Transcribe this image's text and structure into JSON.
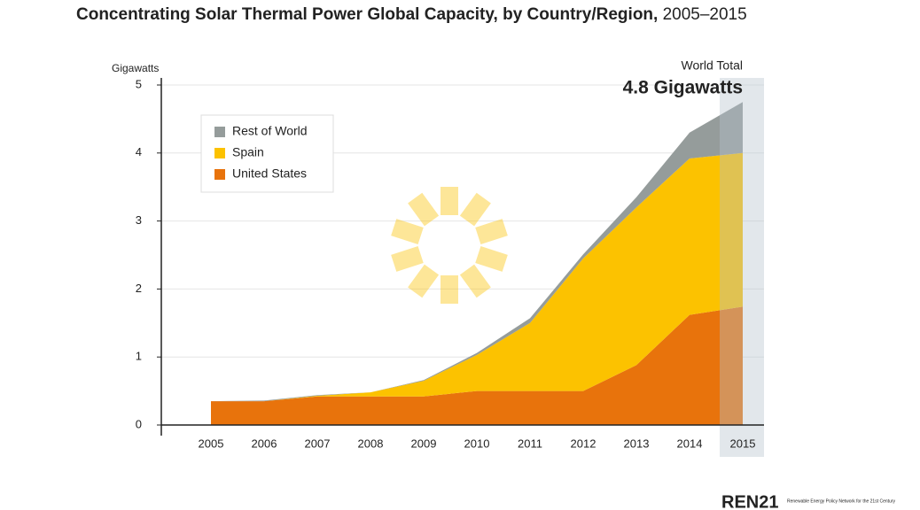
{
  "chart_data": {
    "type": "stacked_area",
    "title": "Concentrating Solar Thermal Power Global Capacity, by Country/Region,",
    "title_period": "2005–2015",
    "y_label": "Gigawatts",
    "annotation_label": "World Total",
    "annotation_value": "4.8 Gigawatts",
    "logo": "REN21",
    "logo_caption": "Renewable Energy Policy Network for the 21st Century",
    "categories": [
      "2005",
      "2006",
      "2007",
      "2008",
      "2009",
      "2010",
      "2011",
      "2012",
      "2013",
      "2014",
      "2015"
    ],
    "series": [
      {
        "name": "United States",
        "color": "#e8730c",
        "values": [
          0.35,
          0.35,
          0.42,
          0.42,
          0.42,
          0.5,
          0.5,
          0.5,
          0.88,
          1.62,
          1.74
        ]
      },
      {
        "name": "Spain",
        "color": "#fcc200",
        "values": [
          0,
          0,
          0.01,
          0.06,
          0.23,
          0.53,
          1.0,
          1.95,
          2.32,
          2.3,
          2.26
        ]
      },
      {
        "name": "Rest of World",
        "color": "#959c9b",
        "values": [
          0,
          0.01,
          0.01,
          0,
          0.01,
          0.03,
          0.07,
          0.06,
          0.15,
          0.38,
          0.75
        ]
      }
    ],
    "ylim": [
      0,
      5
    ],
    "yticks": [
      0,
      1,
      2,
      3,
      4,
      5
    ],
    "grid": true
  }
}
